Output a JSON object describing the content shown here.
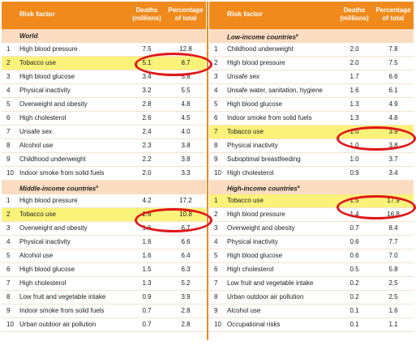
{
  "headers": {
    "risk_factor": "Risk factor",
    "deaths_line1": "Deaths",
    "deaths_line2": "(millions)",
    "pct_line1": "Percentage",
    "pct_line2": "of total"
  },
  "left_panel": {
    "sections": [
      {
        "title": "World",
        "rows": [
          {
            "rank": "1",
            "factor": "High blood pressure",
            "deaths": "7.5",
            "pct": "12.8"
          },
          {
            "rank": "2",
            "factor": "Tobacco use",
            "deaths": "5.1",
            "pct": "8.7",
            "highlight": true
          },
          {
            "rank": "3",
            "factor": "High blood glucose",
            "deaths": "3.4",
            "pct": "5.8"
          },
          {
            "rank": "4",
            "factor": "Physical inactivity",
            "deaths": "3.2",
            "pct": "5.5"
          },
          {
            "rank": "5",
            "factor": "Overweight and obesity",
            "deaths": "2.8",
            "pct": "4.8"
          },
          {
            "rank": "6",
            "factor": "High cholesterol",
            "deaths": "2.6",
            "pct": "4.5"
          },
          {
            "rank": "7",
            "factor": "Unsafe sex",
            "deaths": "2.4",
            "pct": "4.0"
          },
          {
            "rank": "8",
            "factor": "Alcohol use",
            "deaths": "2.3",
            "pct": "3.8"
          },
          {
            "rank": "9",
            "factor": "Childhood underweight",
            "deaths": "2.2",
            "pct": "3.8"
          },
          {
            "rank": "10",
            "factor": "Indoor smoke from solid fuels",
            "deaths": "2.0",
            "pct": "3.3"
          }
        ]
      },
      {
        "title": "Middle-income countries",
        "title_sup": "a",
        "rows": [
          {
            "rank": "1",
            "factor": "High blood pressure",
            "deaths": "4.2",
            "pct": "17.2"
          },
          {
            "rank": "2",
            "factor": "Tobacco use",
            "deaths": "2.6",
            "pct": "10.8",
            "highlight": true
          },
          {
            "rank": "3",
            "factor": "Overweight and obesity",
            "deaths": "1.6",
            "pct": "6.7"
          },
          {
            "rank": "4",
            "factor": "Physical inactivity",
            "deaths": "1.6",
            "pct": "6.6"
          },
          {
            "rank": "5",
            "factor": "Alcohol use",
            "deaths": "1.6",
            "pct": "6.4"
          },
          {
            "rank": "6",
            "factor": "High blood glucose",
            "deaths": "1.5",
            "pct": "6.3"
          },
          {
            "rank": "7",
            "factor": "High cholesterol",
            "deaths": "1.3",
            "pct": "5.2"
          },
          {
            "rank": "8",
            "factor": "Low fruit and vegetable intake",
            "deaths": "0.9",
            "pct": "3.9"
          },
          {
            "rank": "9",
            "factor": "Indoor smoke from solid fuels",
            "deaths": "0.7",
            "pct": "2.8"
          },
          {
            "rank": "10",
            "factor": "Urban outdoor air pollution",
            "deaths": "0.7",
            "pct": "2.8"
          }
        ]
      }
    ]
  },
  "right_panel": {
    "sections": [
      {
        "title": "Low-income countries",
        "title_sup": "a",
        "rows": [
          {
            "rank": "1",
            "factor": "Childhood underweight",
            "deaths": "2.0",
            "pct": "7.8"
          },
          {
            "rank": "2",
            "factor": "High blood pressure",
            "deaths": "2.0",
            "pct": "7.5"
          },
          {
            "rank": "3",
            "factor": "Unsafe sex",
            "deaths": "1.7",
            "pct": "6.6"
          },
          {
            "rank": "4",
            "factor": "Unsafe water, sanitation, hygiene",
            "deaths": "1.6",
            "pct": "6.1"
          },
          {
            "rank": "5",
            "factor": "High blood glucose",
            "deaths": "1.3",
            "pct": "4.9"
          },
          {
            "rank": "6",
            "factor": "Indoor smoke from solid fuels",
            "deaths": "1.3",
            "pct": "4.8"
          },
          {
            "rank": "7",
            "factor": "Tobacco use",
            "deaths": "1.0",
            "pct": "3.9",
            "highlight": true
          },
          {
            "rank": "8",
            "factor": "Physical inactivity",
            "deaths": "1.0",
            "pct": "3.8"
          },
          {
            "rank": "9",
            "factor": "Suboptimal breastfeeding",
            "deaths": "1.0",
            "pct": "3.7"
          },
          {
            "rank": "10",
            "factor": "High cholesterol",
            "deaths": "0.9",
            "pct": "3.4"
          }
        ]
      },
      {
        "title": "High-income countries",
        "title_sup": "a",
        "rows": [
          {
            "rank": "1",
            "factor": "Tobacco use",
            "deaths": "1.5",
            "pct": "17.9",
            "highlight": true
          },
          {
            "rank": "2",
            "factor": "High blood pressure",
            "deaths": "1.4",
            "pct": "16.8"
          },
          {
            "rank": "3",
            "factor": "Overweight and obesity",
            "deaths": "0.7",
            "pct": "8.4"
          },
          {
            "rank": "4",
            "factor": "Physical inactivity",
            "deaths": "0.6",
            "pct": "7.7"
          },
          {
            "rank": "5",
            "factor": "High blood glucose",
            "deaths": "0.6",
            "pct": "7.0"
          },
          {
            "rank": "6",
            "factor": "High cholesterol",
            "deaths": "0.5",
            "pct": "5.8"
          },
          {
            "rank": "7",
            "factor": "Low fruit and vegetable intake",
            "deaths": "0.2",
            "pct": "2.5"
          },
          {
            "rank": "8",
            "factor": "Urban outdoor air pollution",
            "deaths": "0.2",
            "pct": "2.5"
          },
          {
            "rank": "9",
            "factor": "Alcohol use",
            "deaths": "0.1",
            "pct": "1.6"
          },
          {
            "rank": "10",
            "factor": "Occupational risks",
            "deaths": "0.1",
            "pct": "1.1"
          }
        ]
      }
    ]
  },
  "colors": {
    "header_bg": "#f08a1c",
    "section_bg": "#fbdcc0",
    "highlight_bg": "#fbf27a",
    "ring": "#e01616"
  }
}
